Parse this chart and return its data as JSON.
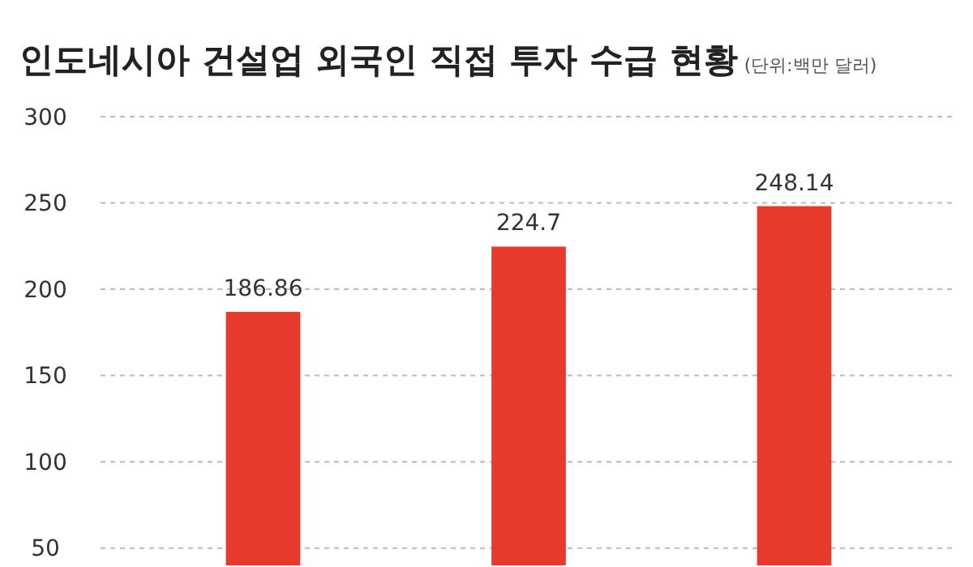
{
  "chart_data": {
    "type": "bar",
    "title": "인도네시아 건설업 외국인 직접 투자 수급 현황",
    "subtitle": "(단위:백만 달러)",
    "categories": [
      null,
      null,
      null
    ],
    "values": [
      186.86,
      224.7,
      248.14
    ],
    "color": "#e83a2c",
    "data_labels": true,
    "ylim": [
      40,
      300
    ],
    "yticks": [
      50,
      100,
      150,
      200,
      250,
      300
    ],
    "grid": "y"
  }
}
